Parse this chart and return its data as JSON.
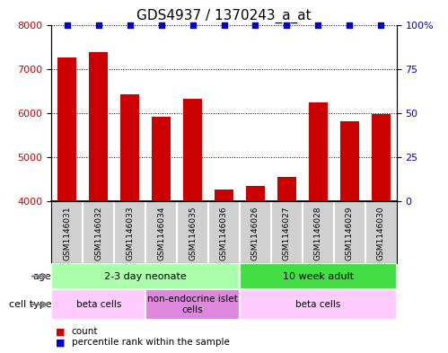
{
  "title": "GDS4937 / 1370243_a_at",
  "samples": [
    "GSM1146031",
    "GSM1146032",
    "GSM1146033",
    "GSM1146034",
    "GSM1146035",
    "GSM1146036",
    "GSM1146026",
    "GSM1146027",
    "GSM1146028",
    "GSM1146029",
    "GSM1146030"
  ],
  "counts": [
    7260,
    7380,
    6420,
    5920,
    6330,
    4260,
    4340,
    4550,
    6230,
    5810,
    5970
  ],
  "percentile_ranks": [
    100,
    100,
    100,
    100,
    100,
    100,
    100,
    100,
    100,
    100,
    100
  ],
  "bar_color": "#cc0000",
  "dot_color": "#0000cc",
  "ylim_left": [
    4000,
    8000
  ],
  "ylim_right": [
    0,
    100
  ],
  "yticks_left": [
    4000,
    5000,
    6000,
    7000,
    8000
  ],
  "yticks_right": [
    0,
    25,
    50,
    75,
    100
  ],
  "yticklabels_right": [
    "0",
    "25",
    "50",
    "75",
    "100%"
  ],
  "grid_color": "#000000",
  "background_color": "#ffffff",
  "sample_bg_color": "#d0d0d0",
  "age_groups": [
    {
      "label": "2-3 day neonate",
      "start": 0,
      "end": 5,
      "color": "#aaffaa"
    },
    {
      "label": "10 week adult",
      "start": 6,
      "end": 10,
      "color": "#44dd44"
    }
  ],
  "cell_type_groups": [
    {
      "label": "beta cells",
      "start": 0,
      "end": 2,
      "color": "#ffccff"
    },
    {
      "label": "non-endocrine islet\ncells",
      "start": 3,
      "end": 5,
      "color": "#dd88dd"
    },
    {
      "label": "beta cells",
      "start": 6,
      "end": 10,
      "color": "#ffccff"
    }
  ],
  "age_row_label": "age",
  "cell_type_row_label": "cell type",
  "legend_count_label": "count",
  "legend_percentile_label": "percentile rank within the sample",
  "title_fontsize": 11,
  "tick_fontsize": 8,
  "label_fontsize": 8
}
